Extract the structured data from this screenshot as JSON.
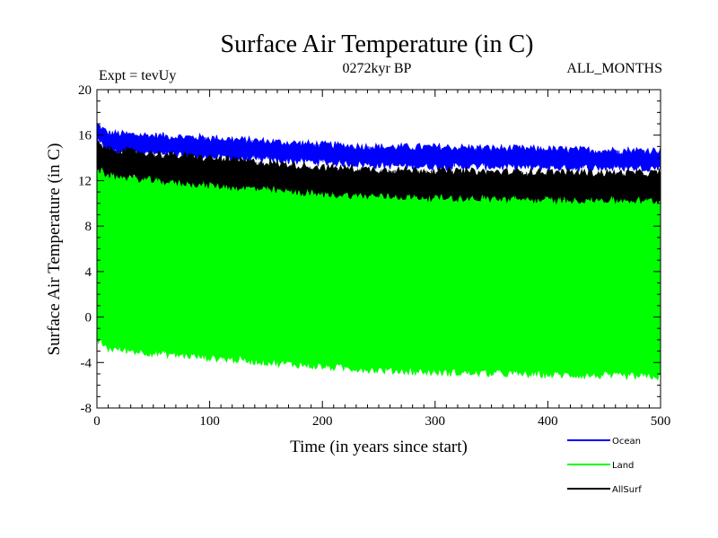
{
  "chart_data": {
    "type": "line",
    "title": "Surface Air Temperature (in C)",
    "subtitle": "0272kyr BP",
    "left_label": "Expt = tevUy",
    "right_label": "ALL_MONTHS",
    "xlabel": "Time (in years since start)",
    "ylabel": "Surface Air Temperature (in C)",
    "xlim": [
      0,
      500
    ],
    "ylim": [
      -8,
      20
    ],
    "xticks": [
      "0",
      "100",
      "200",
      "300",
      "400",
      "500"
    ],
    "yticks": [
      "20",
      "16",
      "12",
      "8",
      "4",
      "0",
      "-4",
      "-8"
    ],
    "grid": false,
    "legend_position": "bottom-right, below plot",
    "series": [
      {
        "name": "Ocean",
        "color": "#0000ff",
        "band_x": [
          0,
          10,
          50,
          100,
          150,
          200,
          250,
          300,
          350,
          400,
          450,
          500
        ],
        "upper": [
          17.0,
          16.2,
          16.0,
          15.8,
          15.5,
          15.2,
          15.0,
          15.0,
          14.9,
          14.8,
          14.7,
          14.7
        ],
        "lower": [
          15.5,
          14.6,
          14.3,
          14.0,
          13.8,
          13.6,
          13.3,
          13.2,
          13.2,
          13.1,
          13.1,
          13.1
        ]
      },
      {
        "name": "Land",
        "color": "#00ff00",
        "band_x": [
          0,
          10,
          50,
          100,
          150,
          200,
          250,
          300,
          350,
          400,
          450,
          500
        ],
        "upper": [
          15.0,
          12.8,
          12.5,
          12.2,
          12.0,
          11.8,
          11.5,
          11.3,
          11.2,
          11.1,
          11.0,
          11.0
        ],
        "lower": [
          -2.0,
          -2.8,
          -3.2,
          -3.6,
          -4.0,
          -4.4,
          -4.7,
          -4.9,
          -5.0,
          -5.1,
          -5.2,
          -5.3
        ]
      },
      {
        "name": "AllSurf",
        "color": "#000000",
        "band_x": [
          0,
          10,
          50,
          100,
          150,
          200,
          250,
          300,
          350,
          400,
          450,
          500
        ],
        "upper": [
          15.3,
          14.8,
          14.4,
          14.0,
          13.6,
          13.2,
          13.0,
          12.9,
          12.8,
          12.8,
          12.7,
          12.7
        ],
        "lower": [
          13.0,
          12.5,
          12.0,
          11.6,
          11.2,
          10.8,
          10.6,
          10.5,
          10.4,
          10.3,
          10.3,
          10.2
        ]
      }
    ]
  }
}
